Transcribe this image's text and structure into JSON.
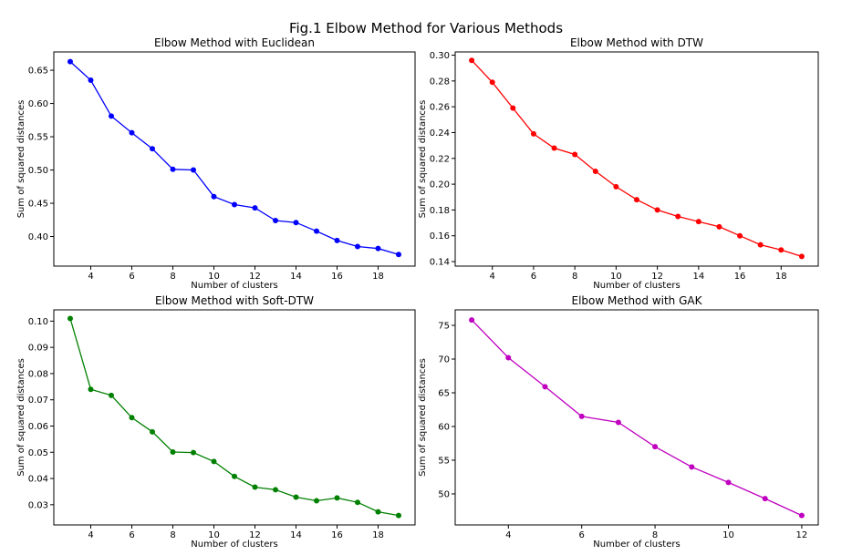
{
  "figure_title": "Fig.1 Elbow Method for Various Methods",
  "chart_data": [
    {
      "type": "line",
      "title": "Elbow Method with Euclidean",
      "xlabel": "Number of clusters",
      "ylabel": "Sum of squared distances",
      "color": "#0000ff",
      "marker": "circle",
      "grid": false,
      "xlim": [
        2.2,
        19.8
      ],
      "ylim": [
        0.3555,
        0.6775
      ],
      "xticks": [
        4,
        6,
        8,
        10,
        12,
        14,
        16,
        18
      ],
      "yticks": [
        0.4,
        0.45,
        0.5,
        0.55,
        0.6,
        0.65
      ],
      "ytick_labels": [
        "0.40",
        "0.45",
        "0.50",
        "0.55",
        "0.60",
        "0.65"
      ],
      "x": [
        3,
        4,
        5,
        6,
        7,
        8,
        9,
        10,
        11,
        12,
        13,
        14,
        15,
        16,
        17,
        18,
        19
      ],
      "values": [
        0.663,
        0.635,
        0.581,
        0.556,
        0.532,
        0.501,
        0.5,
        0.46,
        0.448,
        0.443,
        0.424,
        0.421,
        0.408,
        0.394,
        0.385,
        0.382,
        0.373
      ]
    },
    {
      "type": "line",
      "title": "Elbow Method with DTW",
      "xlabel": "Number of clusters",
      "ylabel": "Sum of squared distances",
      "color": "#ff0000",
      "marker": "circle",
      "grid": false,
      "xlim": [
        2.2,
        19.8
      ],
      "ylim": [
        0.1365,
        0.3025
      ],
      "xticks": [
        4,
        6,
        8,
        10,
        12,
        14,
        16,
        18
      ],
      "yticks": [
        0.14,
        0.16,
        0.18,
        0.2,
        0.22,
        0.24,
        0.26,
        0.28,
        0.3
      ],
      "ytick_labels": [
        "0.14",
        "0.16",
        "0.18",
        "0.20",
        "0.22",
        "0.24",
        "0.26",
        "0.28",
        "0.30"
      ],
      "x": [
        3,
        4,
        5,
        6,
        7,
        8,
        9,
        10,
        11,
        12,
        13,
        14,
        15,
        16,
        17,
        18,
        19
      ],
      "values": [
        0.296,
        0.279,
        0.259,
        0.239,
        0.228,
        0.223,
        0.21,
        0.198,
        0.188,
        0.18,
        0.175,
        0.171,
        0.167,
        0.16,
        0.153,
        0.149,
        0.144
      ]
    },
    {
      "type": "line",
      "title": "Elbow Method with Soft-DTW",
      "xlabel": "Number of clusters",
      "ylabel": "Sum of squared distances",
      "color": "#008000",
      "marker": "circle",
      "grid": false,
      "xlim": [
        2.2,
        19.8
      ],
      "ylim": [
        0.0223,
        0.1043
      ],
      "xticks": [
        4,
        6,
        8,
        10,
        12,
        14,
        16,
        18
      ],
      "yticks": [
        0.03,
        0.04,
        0.05,
        0.06,
        0.07,
        0.08,
        0.09,
        0.1
      ],
      "ytick_labels": [
        "0.03",
        "0.04",
        "0.05",
        "0.06",
        "0.07",
        "0.08",
        "0.09",
        "0.10"
      ],
      "x": [
        3,
        4,
        5,
        6,
        7,
        8,
        9,
        10,
        11,
        12,
        13,
        14,
        15,
        16,
        17,
        18,
        19
      ],
      "values": [
        0.101,
        0.074,
        0.0717,
        0.0632,
        0.0578,
        0.0501,
        0.0499,
        0.0465,
        0.0408,
        0.0367,
        0.0357,
        0.0329,
        0.0315,
        0.0326,
        0.0309,
        0.0273,
        0.0259
      ]
    },
    {
      "type": "line",
      "title": "Elbow Method with GAK",
      "xlabel": "Number of clusters",
      "ylabel": "Sum of squared distances",
      "color": "#bf00bf",
      "marker": "circle",
      "grid": false,
      "xlim": [
        2.55,
        12.45
      ],
      "ylim": [
        45.4,
        77.3
      ],
      "xticks": [
        4,
        6,
        8,
        10,
        12
      ],
      "yticks": [
        50,
        55,
        60,
        65,
        70,
        75
      ],
      "ytick_labels": [
        "50",
        "55",
        "60",
        "65",
        "70",
        "75"
      ],
      "x": [
        3,
        4,
        5,
        6,
        7,
        8,
        9,
        10,
        11,
        12
      ],
      "values": [
        75.8,
        70.2,
        65.9,
        61.5,
        60.6,
        57.0,
        54.0,
        51.7,
        49.3,
        46.8
      ]
    }
  ]
}
